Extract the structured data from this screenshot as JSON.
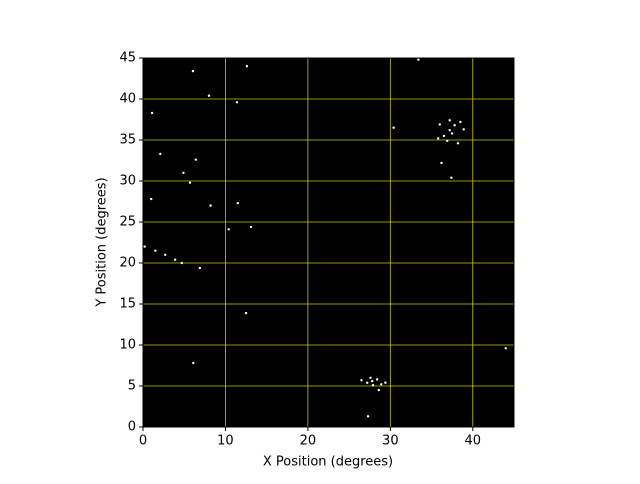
{
  "chart_data": {
    "type": "scatter",
    "xlabel": "X Position (degrees)",
    "ylabel": "Y Position (degrees)",
    "x": [
      6.06,
      12.6,
      8.0,
      11.4,
      1.1,
      2.1,
      6.4,
      4.9,
      5.7,
      1.0,
      8.2,
      11.5,
      13.1,
      10.4,
      0.2,
      1.5,
      2.7,
      3.9,
      4.7,
      6.9,
      12.5,
      6.1,
      44.0,
      27.3,
      27.8,
      27.2,
      28.4,
      27.6,
      28.9,
      26.5,
      29.4,
      27.9,
      28.6,
      37.2,
      36.5,
      37.8,
      38.5,
      36.9,
      37.5,
      38.9,
      36.0,
      37.2,
      35.8,
      38.2,
      30.4,
      33.4,
      37.4,
      36.2
    ],
    "values": [
      43.4,
      44.0,
      40.4,
      39.6,
      38.3,
      33.3,
      32.6,
      31.0,
      29.8,
      27.8,
      27.0,
      27.3,
      24.4,
      24.1,
      22.0,
      21.5,
      21.0,
      20.4,
      20.0,
      19.4,
      13.9,
      7.8,
      9.6,
      1.3,
      5.6,
      5.4,
      5.8,
      6.0,
      5.2,
      5.7,
      5.4,
      5.1,
      4.5,
      36.2,
      35.5,
      36.8,
      37.2,
      34.9,
      35.8,
      36.3,
      36.9,
      37.4,
      35.2,
      34.6,
      36.5,
      44.8,
      30.4,
      32.2
    ],
    "color": "#ffffee",
    "background": "#000000",
    "grid": true,
    "grid_color": "#c8c800",
    "xlim": [
      0,
      45
    ],
    "ylim": [
      0,
      45
    ],
    "xticks": [
      0,
      10,
      20,
      30,
      40
    ],
    "yticks": [
      0,
      5,
      10,
      15,
      20,
      25,
      30,
      35,
      40,
      45
    ]
  }
}
